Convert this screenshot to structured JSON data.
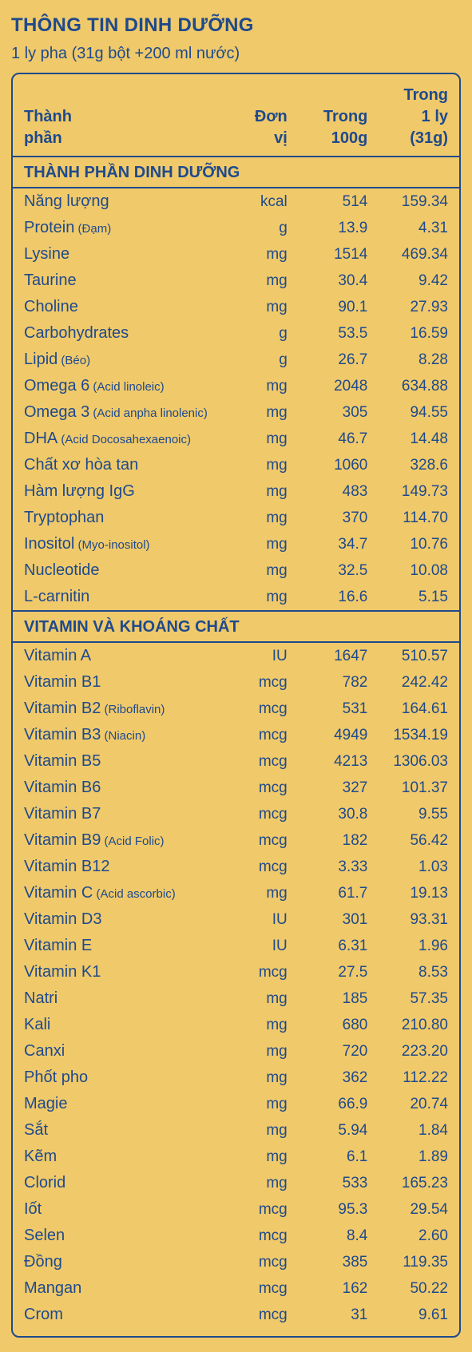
{
  "title": "THÔNG TIN DINH DƯỠNG",
  "subtitle": "1 ly pha (31g bột +200 ml nước)",
  "headers": {
    "name_l1": "Thành",
    "name_l2": "phần",
    "unit_l1": "Đơn",
    "unit_l2": "vị",
    "per100_l1": "Trong",
    "per100_l2": "100g",
    "per31_l1": "Trong",
    "per31_l2": "1 ly (31g)"
  },
  "sections": [
    {
      "title": "THÀNH PHẦN DINH DƯỠNG",
      "rows": [
        {
          "name": "Năng lượng",
          "sub": "",
          "unit": "kcal",
          "v100": "514",
          "v31": "159.34"
        },
        {
          "name": "Protein",
          "sub": "(Đạm)",
          "unit": "g",
          "v100": "13.9",
          "v31": "4.31"
        },
        {
          "name": "Lysine",
          "sub": "",
          "unit": "mg",
          "v100": "1514",
          "v31": "469.34"
        },
        {
          "name": "Taurine",
          "sub": "",
          "unit": "mg",
          "v100": "30.4",
          "v31": "9.42"
        },
        {
          "name": "Choline",
          "sub": "",
          "unit": "mg",
          "v100": "90.1",
          "v31": "27.93"
        },
        {
          "name": "Carbohydrates",
          "sub": "",
          "unit": "g",
          "v100": "53.5",
          "v31": "16.59"
        },
        {
          "name": "Lipid",
          "sub": "(Béo)",
          "unit": "g",
          "v100": "26.7",
          "v31": "8.28"
        },
        {
          "name": "Omega 6",
          "sub": "(Acid linoleic)",
          "unit": "mg",
          "v100": "2048",
          "v31": "634.88"
        },
        {
          "name": "Omega 3",
          "sub": "(Acid anpha linolenic)",
          "unit": "mg",
          "v100": "305",
          "v31": "94.55"
        },
        {
          "name": "DHA",
          "sub": "(Acid Docosahexaenoic)",
          "unit": "mg",
          "v100": "46.7",
          "v31": "14.48"
        },
        {
          "name": "Chất xơ hòa tan",
          "sub": "",
          "unit": "mg",
          "v100": "1060",
          "v31": "328.6"
        },
        {
          "name": "Hàm lượng IgG",
          "sub": "",
          "unit": "mg",
          "v100": "483",
          "v31": "149.73"
        },
        {
          "name": "Tryptophan",
          "sub": "",
          "unit": "mg",
          "v100": "370",
          "v31": "114.70"
        },
        {
          "name": "Inositol",
          "sub": "(Myo-inositol)",
          "unit": "mg",
          "v100": "34.7",
          "v31": "10.76"
        },
        {
          "name": "Nucleotide",
          "sub": "",
          "unit": "mg",
          "v100": "32.5",
          "v31": "10.08"
        },
        {
          "name": "L-carnitin",
          "sub": "",
          "unit": "mg",
          "v100": "16.6",
          "v31": "5.15"
        }
      ]
    },
    {
      "title": "VITAMIN VÀ KHOÁNG CHẤT",
      "rows": [
        {
          "name": "Vitamin A",
          "sub": "",
          "unit": "IU",
          "v100": "1647",
          "v31": "510.57"
        },
        {
          "name": "Vitamin B1",
          "sub": "",
          "unit": "mcg",
          "v100": "782",
          "v31": "242.42"
        },
        {
          "name": "Vitamin B2",
          "sub": "(Riboflavin)",
          "unit": "mcg",
          "v100": "531",
          "v31": "164.61"
        },
        {
          "name": "Vitamin B3",
          "sub": "(Niacin)",
          "unit": "mcg",
          "v100": "4949",
          "v31": "1534.19"
        },
        {
          "name": "Vitamin B5",
          "sub": "",
          "unit": "mcg",
          "v100": "4213",
          "v31": "1306.03"
        },
        {
          "name": "Vitamin B6",
          "sub": "",
          "unit": "mcg",
          "v100": "327",
          "v31": "101.37"
        },
        {
          "name": "Vitamin B7",
          "sub": "",
          "unit": "mcg",
          "v100": "30.8",
          "v31": "9.55"
        },
        {
          "name": "Vitamin B9",
          "sub": "(Acid Folic)",
          "unit": "mcg",
          "v100": "182",
          "v31": "56.42"
        },
        {
          "name": "Vitamin B12",
          "sub": "",
          "unit": "mcg",
          "v100": "3.33",
          "v31": "1.03"
        },
        {
          "name": "Vitamin C",
          "sub": "(Acid ascorbic)",
          "unit": "mg",
          "v100": "61.7",
          "v31": "19.13"
        },
        {
          "name": "Vitamin D3",
          "sub": "",
          "unit": "IU",
          "v100": "301",
          "v31": "93.31"
        },
        {
          "name": "Vitamin E",
          "sub": "",
          "unit": "IU",
          "v100": "6.31",
          "v31": "1.96"
        },
        {
          "name": "Vitamin K1",
          "sub": "",
          "unit": "mcg",
          "v100": "27.5",
          "v31": "8.53"
        },
        {
          "name": "Natri",
          "sub": "",
          "unit": "mg",
          "v100": "185",
          "v31": "57.35"
        },
        {
          "name": "Kali",
          "sub": "",
          "unit": "mg",
          "v100": "680",
          "v31": "210.80"
        },
        {
          "name": "Canxi",
          "sub": "",
          "unit": "mg",
          "v100": "720",
          "v31": "223.20"
        },
        {
          "name": "Phốt pho",
          "sub": "",
          "unit": "mg",
          "v100": "362",
          "v31": "112.22"
        },
        {
          "name": "Magie",
          "sub": "",
          "unit": "mg",
          "v100": "66.9",
          "v31": "20.74"
        },
        {
          "name": "Sắt",
          "sub": "",
          "unit": "mg",
          "v100": "5.94",
          "v31": "1.84"
        },
        {
          "name": "Kẽm",
          "sub": "",
          "unit": "mg",
          "v100": "6.1",
          "v31": "1.89"
        },
        {
          "name": "Clorid",
          "sub": "",
          "unit": "mg",
          "v100": "533",
          "v31": "165.23"
        },
        {
          "name": "Iốt",
          "sub": "",
          "unit": "mcg",
          "v100": "95.3",
          "v31": "29.54"
        },
        {
          "name": "Selen",
          "sub": "",
          "unit": "mcg",
          "v100": "8.4",
          "v31": "2.60"
        },
        {
          "name": "Đồng",
          "sub": "",
          "unit": "mcg",
          "v100": "385",
          "v31": "119.35"
        },
        {
          "name": "Mangan",
          "sub": "",
          "unit": "mcg",
          "v100": "162",
          "v31": "50.22"
        },
        {
          "name": "Crom",
          "sub": "",
          "unit": "mcg",
          "v100": "31",
          "v31": "9.61"
        }
      ]
    }
  ],
  "style": {
    "bg": "#f0c96a",
    "fg": "#1e4a8c",
    "border": "#1e4a8c"
  }
}
